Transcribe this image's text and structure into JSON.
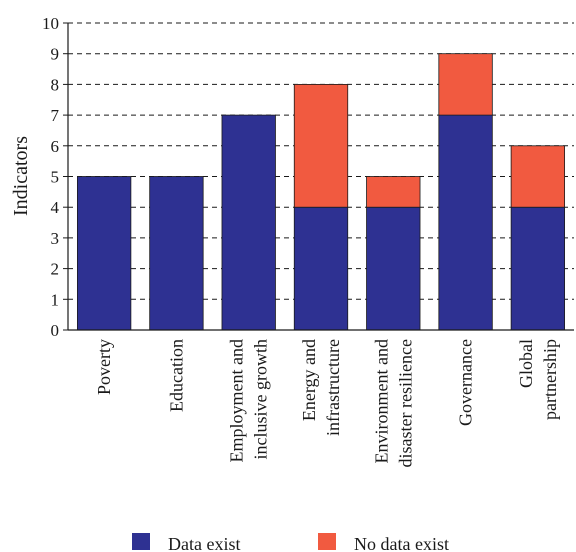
{
  "chart_data": {
    "type": "bar",
    "stacked": true,
    "ylabel": "Indicators",
    "xlabel": "",
    "ylim": [
      0,
      10
    ],
    "yticks": [
      "0",
      "1",
      "2",
      "3",
      "4",
      "5",
      "6",
      "7",
      "8",
      "9",
      "10"
    ],
    "grid": "horizontal-dashed",
    "legend_position": "bottom",
    "categories": [
      [
        "Poverty"
      ],
      [
        "Education"
      ],
      [
        "Employment and",
        "inclusive growth"
      ],
      [
        "Energy and",
        "infrastructure"
      ],
      [
        "Environment and",
        "disaster resilience"
      ],
      [
        "Governance"
      ],
      [
        "Global",
        "partnership"
      ]
    ],
    "series": [
      {
        "name": "Data exist",
        "color": "#2e3192",
        "values": [
          5,
          5,
          7,
          4,
          4,
          7,
          4
        ]
      },
      {
        "name": "No data exist",
        "color": "#f15a40",
        "values": [
          0,
          0,
          0,
          4,
          1,
          2,
          2
        ]
      }
    ]
  }
}
